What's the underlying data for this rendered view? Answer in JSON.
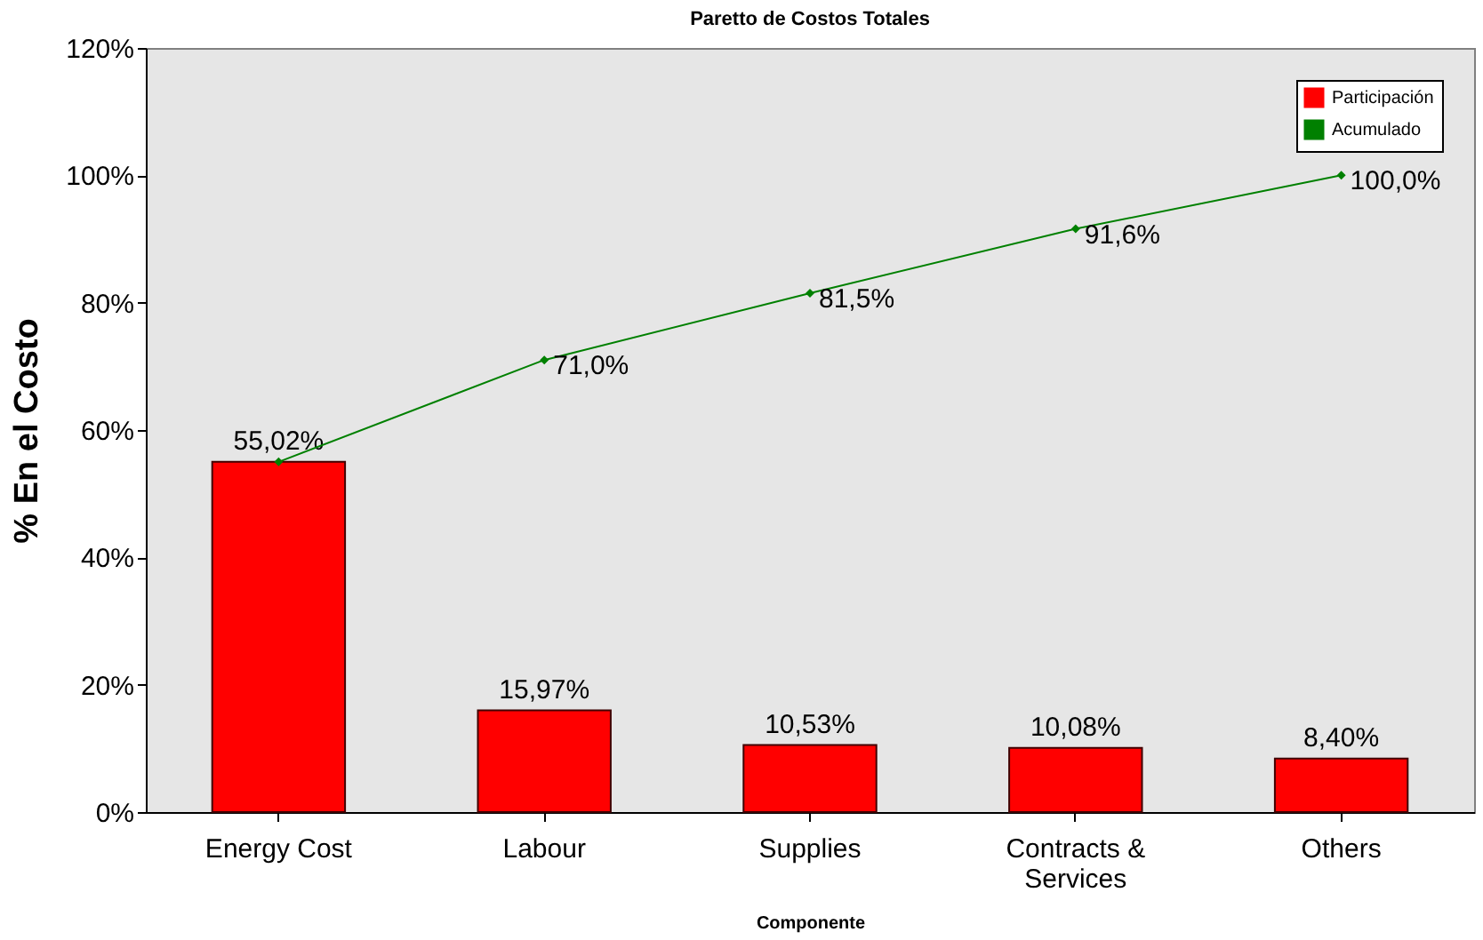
{
  "chart_data": {
    "type": "bar",
    "title": "Paretto de Costos Totales",
    "xlabel": "Componente",
    "ylabel": "% En el Costo",
    "categories": [
      "Energy Cost",
      "Labour",
      "Supplies",
      "Contracts & Services",
      "Others"
    ],
    "series": [
      {
        "name": "Participación",
        "color": "#ff0000",
        "values": [
          55.02,
          15.97,
          10.53,
          10.08,
          8.4
        ],
        "value_labels": [
          "55,02%",
          "15,97%",
          "10,53%",
          "10,08%",
          "8,40%"
        ]
      },
      {
        "name": "Acumulado",
        "type": "line",
        "color": "#008000",
        "marker": "diamond",
        "values": [
          55.0,
          71.0,
          81.5,
          91.6,
          100.0
        ],
        "value_labels": [
          null,
          "71,0%",
          "81,5%",
          "91,6%",
          "100,0%"
        ]
      }
    ],
    "ylim": [
      0,
      120
    ],
    "yticks": [
      {
        "value": 0,
        "label": "0%"
      },
      {
        "value": 20,
        "label": "20%"
      },
      {
        "value": 40,
        "label": "40%"
      },
      {
        "value": 60,
        "label": "60%"
      },
      {
        "value": 80,
        "label": "80%"
      },
      {
        "value": 100,
        "label": "100%"
      },
      {
        "value": 120,
        "label": "120%"
      }
    ],
    "grid": false,
    "legend": "top right"
  }
}
